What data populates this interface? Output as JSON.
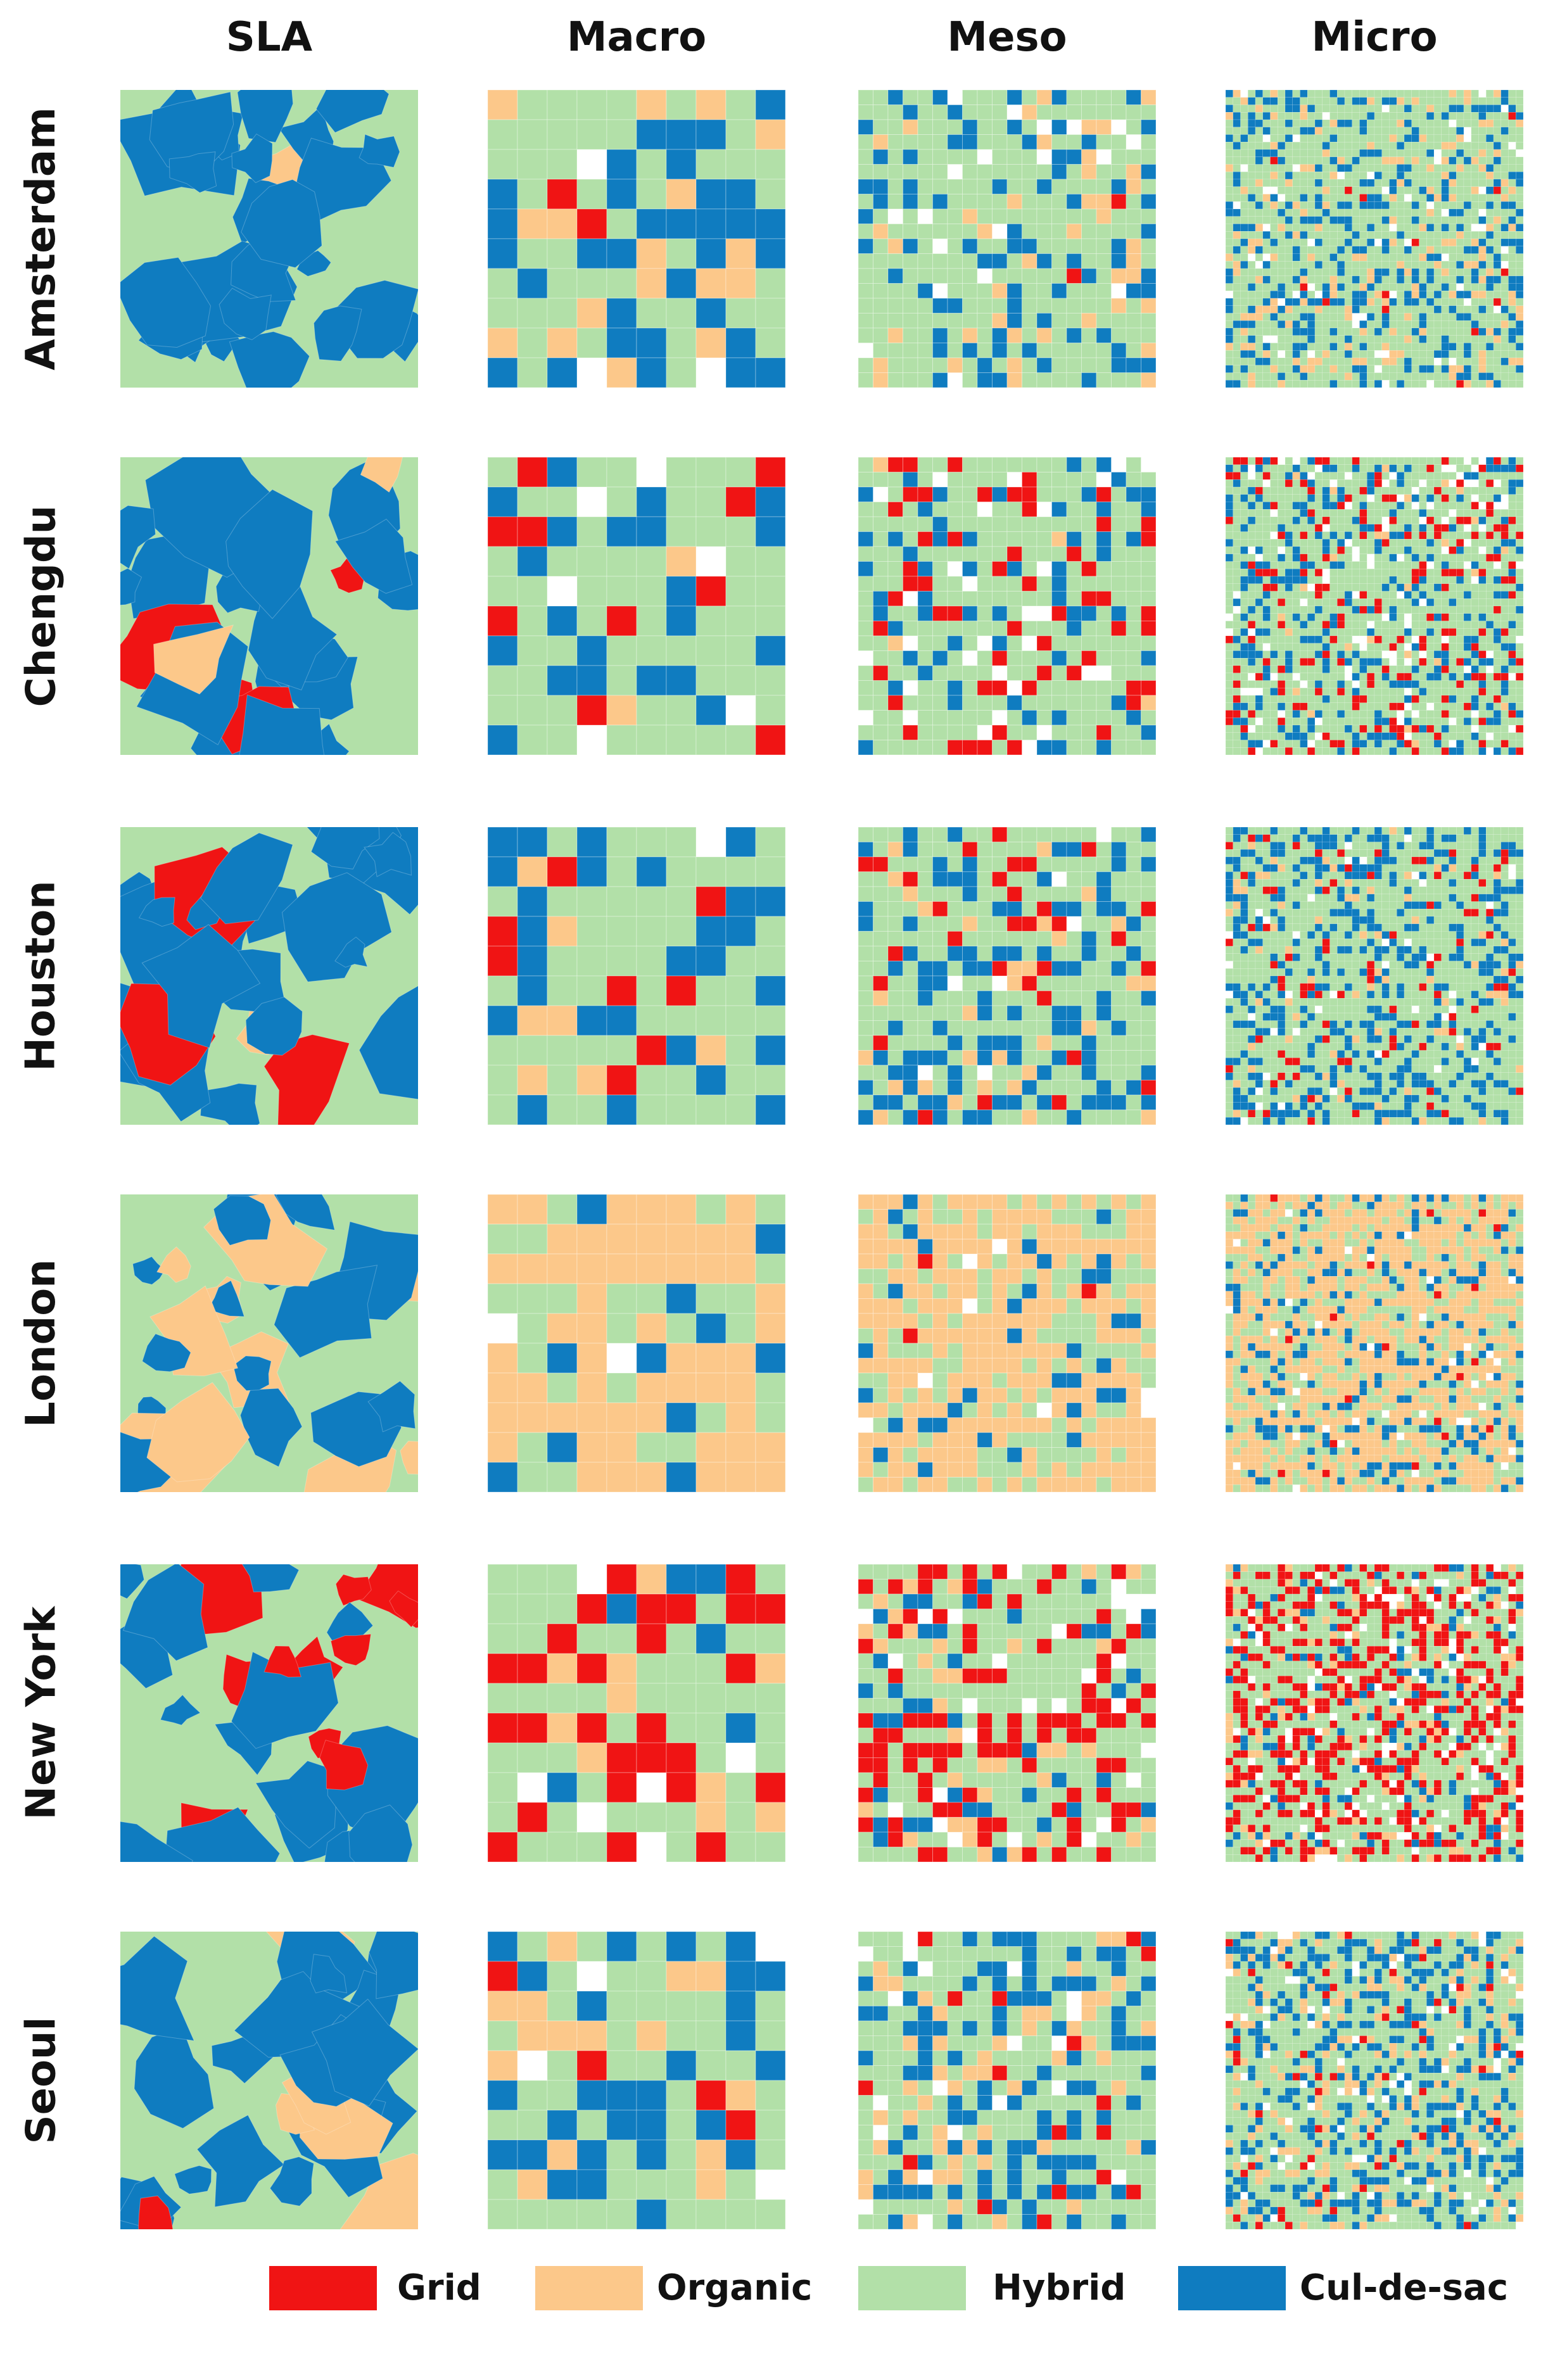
{
  "columns": [
    "SLA",
    "Macro",
    "Meso",
    "Micro"
  ],
  "rows": [
    "Amsterdam",
    "Chengdu",
    "Houston",
    "London",
    "New York",
    "Seoul"
  ],
  "legend": [
    {
      "key": "grid",
      "label": "Grid",
      "color": "#f01414"
    },
    {
      "key": "organic",
      "label": "Organic",
      "color": "#fcc88a"
    },
    {
      "key": "hybrid",
      "label": "Hybrid",
      "color": "#b2e0a8"
    },
    {
      "key": "culdesac",
      "label": "Cul-de-sac",
      "color": "#0f7cc0"
    }
  ],
  "grid_resolution": {
    "Macro": 10,
    "Meso": 20,
    "Micro": 40
  },
  "city_palette": {
    "Amsterdam": {
      "empty": 0.04,
      "grid": 0.01,
      "organic": 0.12,
      "hybrid": 0.63,
      "culdesac": 0.2
    },
    "Chengdu": {
      "empty": 0.08,
      "grid": 0.12,
      "organic": 0.02,
      "hybrid": 0.6,
      "culdesac": 0.18
    },
    "Houston": {
      "empty": 0.03,
      "grid": 0.06,
      "organic": 0.05,
      "hybrid": 0.6,
      "culdesac": 0.26
    },
    "London": {
      "empty": 0.02,
      "grid": 0.01,
      "organic": 0.55,
      "hybrid": 0.3,
      "culdesac": 0.12
    },
    "New York": {
      "empty": 0.06,
      "grid": 0.3,
      "organic": 0.08,
      "hybrid": 0.48,
      "culdesac": 0.08
    },
    "Seoul": {
      "empty": 0.05,
      "grid": 0.04,
      "organic": 0.14,
      "hybrid": 0.52,
      "culdesac": 0.25
    }
  }
}
